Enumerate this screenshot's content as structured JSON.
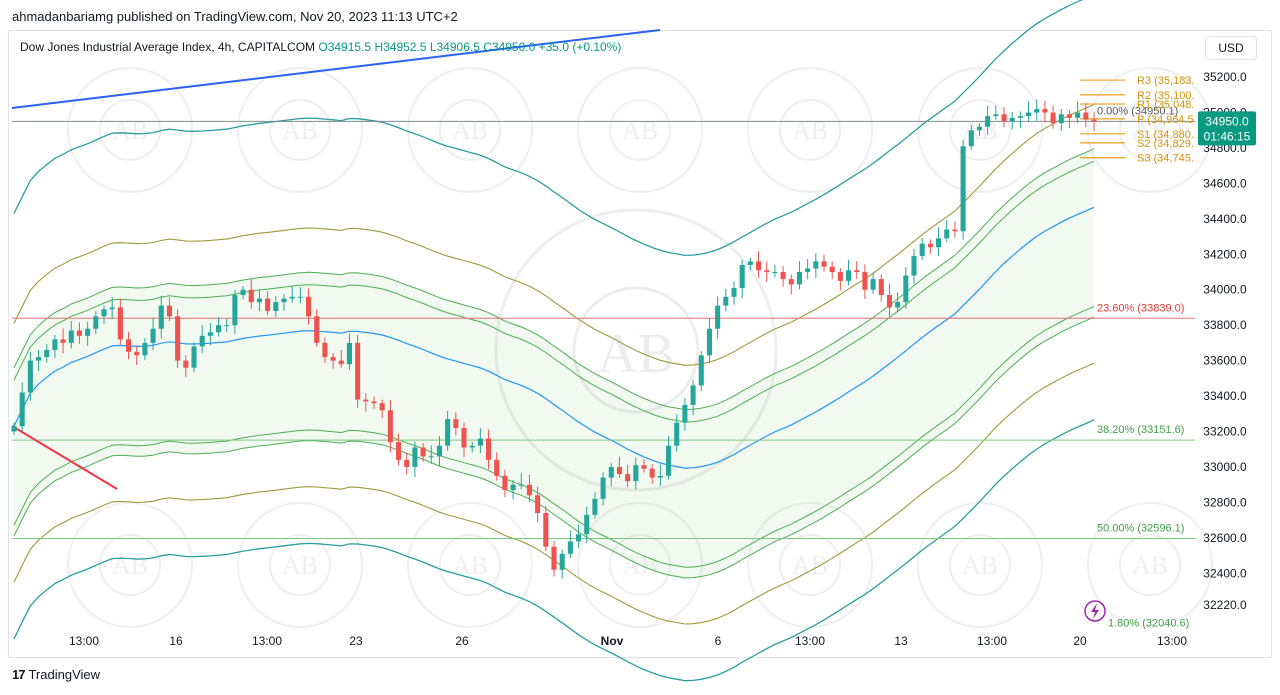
{
  "header": {
    "published_by": "ahmadanbariamg published on TradingView.com, Nov 20, 2023 11:13 UTC+2"
  },
  "legend": {
    "symbol": "Dow Jones Industrial Average Index, 4h, CAPITALCOM",
    "open": "O34915.5",
    "high": "H34952.5",
    "low": "L34906.5",
    "close": "C34950.0",
    "change": "+35.0 (+0.10%)"
  },
  "currency_button": "USD",
  "brand": {
    "logo": "17",
    "name": "TradingView"
  },
  "colors": {
    "up": "#26a69a",
    "down": "#ef5350",
    "outer_band": "#2a9d9f",
    "mid_band": "#9e9a3a",
    "inner_band": "#4caf50",
    "basis": "#2196f3",
    "trendline_blue": "#2962ff",
    "trendline_red": "#f23645",
    "pivot": "#f0a830",
    "fib_red": "#e57373",
    "fib_green": "#81c784"
  },
  "chart_data": {
    "type": "candlestick",
    "y_range": [
      32080,
      35460
    ],
    "price_ticks": [
      "35200.0",
      "35000.0",
      "34800.0",
      "34600.0",
      "34400.0",
      "34200.0",
      "34000.0",
      "33800.0",
      "33600.0",
      "33400.0",
      "33200.0",
      "33000.0",
      "32800.0",
      "32600.0",
      "32400.0",
      "32220.0"
    ],
    "time_ticks": [
      "13:00",
      "16",
      "13:00",
      "23",
      "26",
      "Nov",
      "6",
      "13:00",
      "13",
      "13:00",
      "20",
      "13:00"
    ],
    "current_price": "34950.0",
    "countdown": "01:46:15",
    "fibonacci": [
      {
        "label": "0.00% (34950.1)",
        "value": 34950.1
      },
      {
        "label": "23.60% (33839.0)",
        "value": 33839.0
      },
      {
        "label": "38.20% (33151.6)",
        "value": 33151.6
      },
      {
        "label": "50.00% (32596.1)",
        "value": 32596.1
      },
      {
        "label": "1.80% (32040.6)",
        "value": 32040.6
      }
    ],
    "pivots": [
      {
        "label": "R3 (35,183.",
        "value": 35183
      },
      {
        "label": "R2 (35,100.",
        "value": 35100
      },
      {
        "label": "R1 (35,048.",
        "value": 35048
      },
      {
        "label": "P (34,964.5",
        "value": 34964.5
      },
      {
        "label": "S1 (34,880.",
        "value": 34880
      },
      {
        "label": "S2 (34,829.",
        "value": 34829
      },
      {
        "label": "S3 (34,745.",
        "value": 34745
      }
    ],
    "closes": [
      33230,
      33420,
      33600,
      33620,
      33660,
      33720,
      33700,
      33770,
      33740,
      33780,
      33850,
      33890,
      33900,
      33720,
      33650,
      33630,
      33700,
      33780,
      33910,
      33850,
      33600,
      33560,
      33680,
      33740,
      33760,
      33800,
      33800,
      33970,
      34000,
      33930,
      33950,
      33880,
      33930,
      33950,
      33960,
      33960,
      33850,
      33700,
      33620,
      33600,
      33580,
      33700,
      33380,
      33370,
      33360,
      33320,
      33140,
      33040,
      33000,
      33110,
      33060,
      33060,
      33120,
      33270,
      33220,
      33110,
      33120,
      33160,
      33040,
      32950,
      32870,
      32900,
      32900,
      32840,
      32740,
      32550,
      32420,
      32510,
      32580,
      32620,
      32730,
      32820,
      32940,
      33000,
      32960,
      32920,
      33010,
      32990,
      32940,
      32950,
      33120,
      33250,
      33350,
      33460,
      33630,
      33780,
      33910,
      33960,
      34010,
      34140,
      34160,
      34110,
      34100,
      34100,
      34060,
      34030,
      34100,
      34120,
      34160,
      34130,
      34100,
      34050,
      34110,
      34100,
      34000,
      34060,
      33970,
      33900,
      33930,
      34080,
      34190,
      34260,
      34240,
      34290,
      34340,
      34330,
      34810,
      34900,
      34920,
      34980,
      34990,
      34950,
      34970,
      34980,
      35000,
      35020,
      35000,
      34940,
      34990,
      34970,
      35000,
      34960,
      34950
    ]
  }
}
